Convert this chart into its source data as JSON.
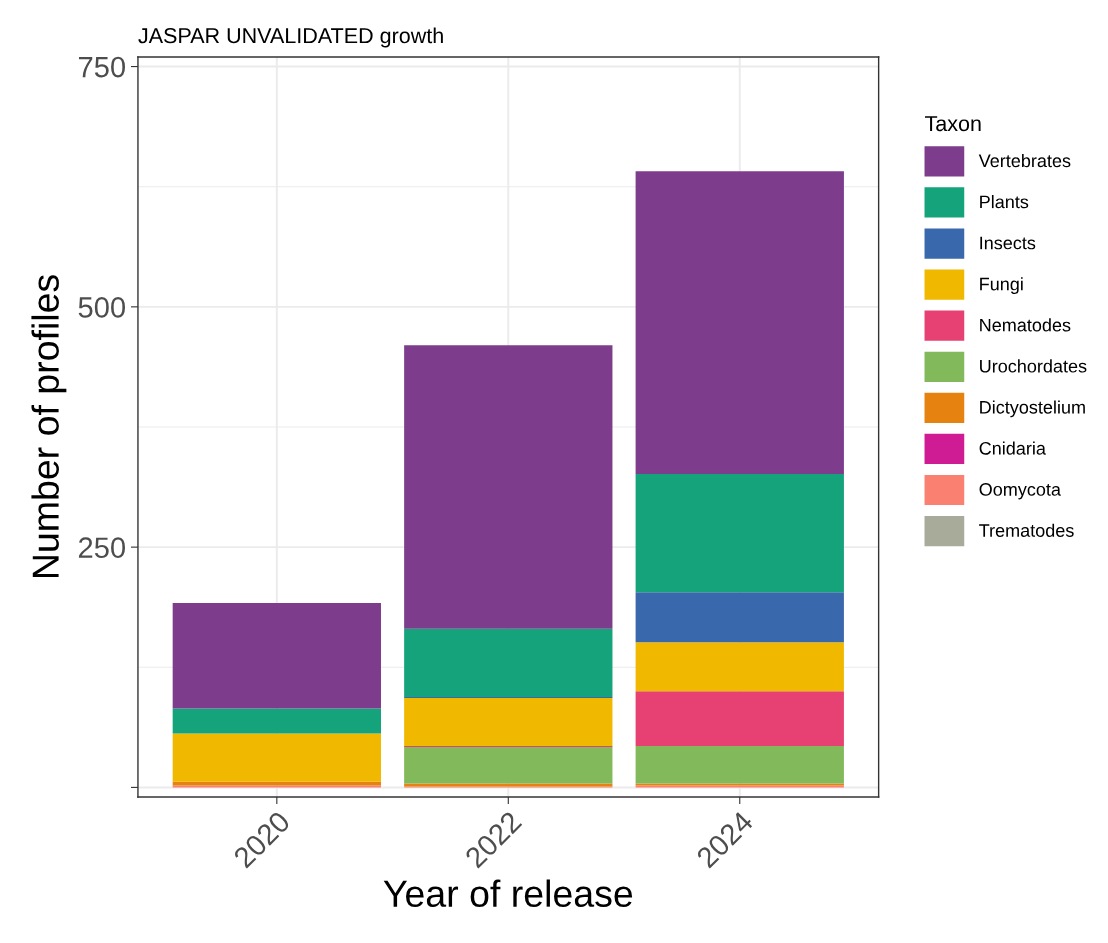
{
  "chart_data": {
    "type": "bar",
    "title": "JASPAR UNVALIDATED growth",
    "xlabel": "Year of release",
    "ylabel": "Number of profiles",
    "legend_title": "Taxon",
    "categories": [
      "2020",
      "2022",
      "2024"
    ],
    "stacked": true,
    "series": [
      {
        "name": "Trematodes",
        "color": "#a8ab9a",
        "values": [
          0,
          0,
          0
        ]
      },
      {
        "name": "Oomycota",
        "color": "#fa8072",
        "values": [
          2,
          1,
          2
        ]
      },
      {
        "name": "Cnidaria",
        "color": "#d01c94",
        "values": [
          0,
          0,
          0
        ]
      },
      {
        "name": "Dictyostelium",
        "color": "#e6820f",
        "values": [
          4,
          3,
          2
        ]
      },
      {
        "name": "Urochordates",
        "color": "#82b95a",
        "values": [
          0,
          38,
          39
        ]
      },
      {
        "name": "Nematodes",
        "color": "#e64172",
        "values": [
          0,
          1,
          57
        ]
      },
      {
        "name": "Fungi",
        "color": "#f1b800",
        "values": [
          50,
          50,
          51
        ]
      },
      {
        "name": "Insects",
        "color": "#3a68ad",
        "values": [
          0,
          1,
          52
        ]
      },
      {
        "name": "Plants",
        "color": "#14a37a",
        "values": [
          26,
          71,
          123
        ]
      },
      {
        "name": "Vertebrates",
        "color": "#7d3c8c",
        "values": [
          110,
          295,
          315
        ]
      }
    ],
    "ylim": [
      -10,
      760
    ],
    "yticks": [
      {
        "value": 0,
        "label": null
      },
      250,
      500,
      750
    ],
    "grid": true,
    "legend": "right"
  }
}
